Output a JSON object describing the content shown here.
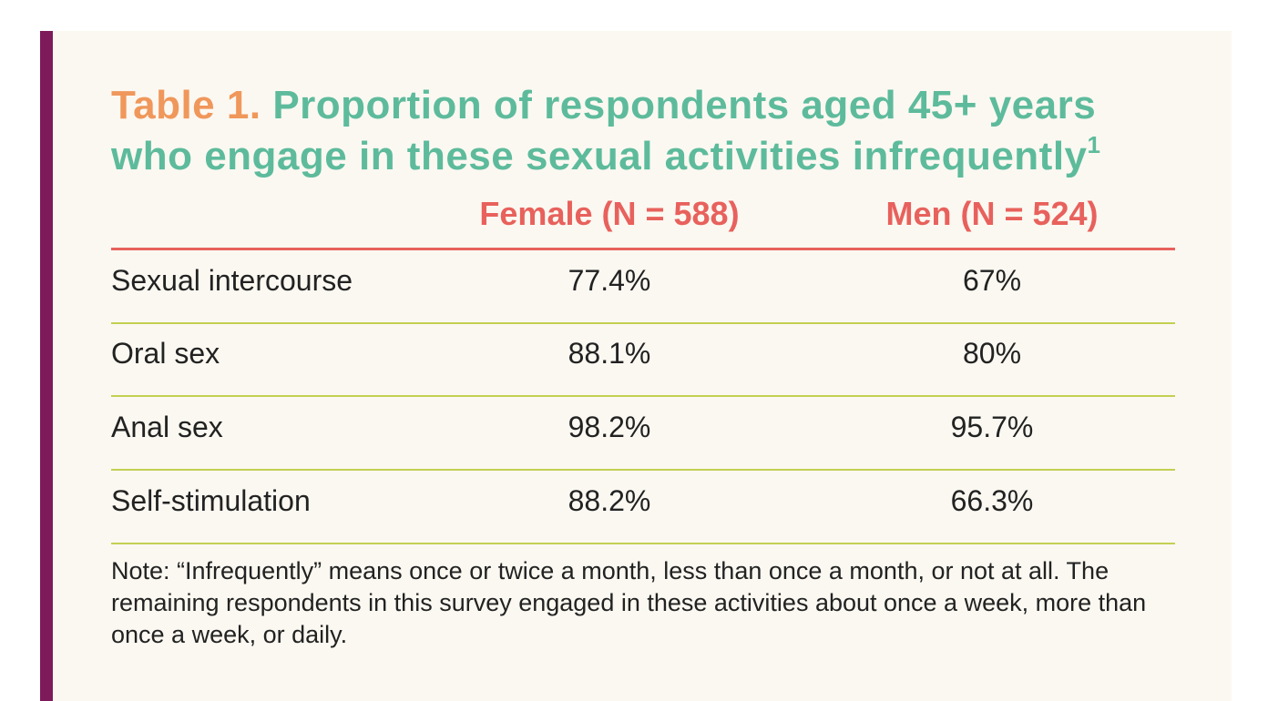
{
  "table": {
    "label": "Table 1.",
    "title": "Proportion of respondents aged 45+ years who engage in these sexual activities infrequently",
    "footnote_marker": "1",
    "columns": {
      "female": "Female (N = 588)",
      "men": "Men (N = 524)"
    },
    "rows": [
      {
        "activity": "Sexual intercourse",
        "female": "77.4%",
        "men": "67%"
      },
      {
        "activity": "Oral sex",
        "female": "88.1%",
        "men": "80%"
      },
      {
        "activity": "Anal sex",
        "female": "98.2%",
        "men": "95.7%"
      },
      {
        "activity": "Self-stimulation",
        "female": "88.2%",
        "men": "66.3%"
      }
    ],
    "note": "Note: “Infrequently” means once or twice a month, less than once a month, or not at all. The remaining respondents in this survey engaged in these activities about once a week, more than once a week, or daily."
  },
  "colors": {
    "accent_bar": "#7d1a5a",
    "label": "#f0975b",
    "title": "#5dbb9c",
    "column_headers": "#e8615c",
    "row_rules": "#c3cf52",
    "panel_background": "#fbf8f1"
  }
}
